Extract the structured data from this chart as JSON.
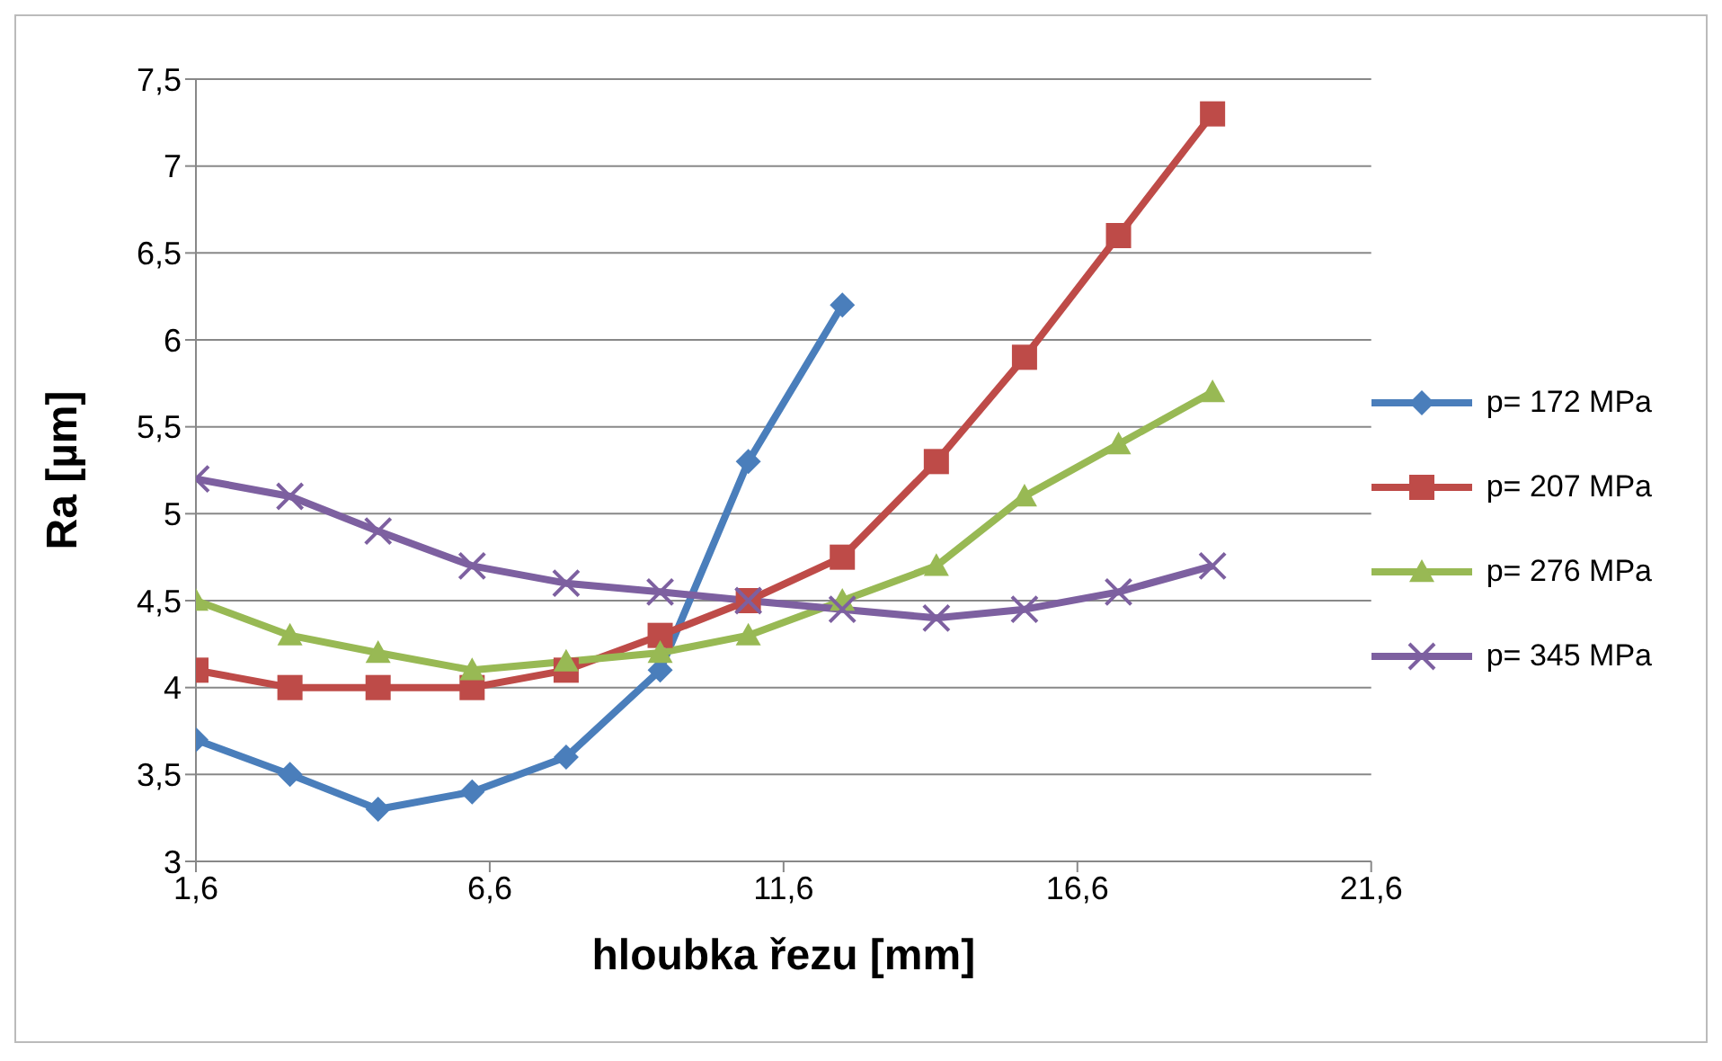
{
  "chart_data": {
    "type": "line",
    "xlabel": "hloubka řezu [mm]",
    "ylabel": "Ra [µm]",
    "xlim": [
      1.6,
      21.6
    ],
    "xticks": [
      {
        "value": 1.6,
        "label": "1,6"
      },
      {
        "value": 6.6,
        "label": "6,6"
      },
      {
        "value": 11.6,
        "label": "11,6"
      },
      {
        "value": 16.6,
        "label": "16,6"
      },
      {
        "value": 21.6,
        "label": "21,6"
      }
    ],
    "ylim": [
      3,
      7.5
    ],
    "yticks": [
      3,
      {
        "value": 3.5,
        "label": "3,5"
      },
      4,
      {
        "value": 4.5,
        "label": "4,5"
      },
      5,
      {
        "value": 5.5,
        "label": "5,5"
      },
      6,
      {
        "value": 6.5,
        "label": "6,5"
      },
      7,
      {
        "value": 7.5,
        "label": "7,5"
      }
    ],
    "grid": "y",
    "legend": "right",
    "line_style": "solid",
    "x": [
      1.6,
      3.2,
      4.7,
      6.3,
      7.9,
      9.5,
      11.0,
      12.6,
      14.2,
      15.7,
      17.3,
      18.9
    ],
    "series": [
      {
        "name": "p= 172 MPa",
        "color": "#4a7ebb",
        "marker": "diamond",
        "values": [
          3.7,
          3.5,
          3.3,
          3.4,
          3.6,
          4.1,
          5.3,
          6.2,
          null,
          null,
          null,
          null
        ]
      },
      {
        "name": "p= 207 MPa",
        "color": "#be4b48",
        "marker": "square",
        "values": [
          4.1,
          4.0,
          4.0,
          4.0,
          4.1,
          4.3,
          4.5,
          4.75,
          5.3,
          5.9,
          6.6,
          7.3
        ]
      },
      {
        "name": "p= 276 MPa",
        "color": "#98b954",
        "marker": "triangle",
        "values": [
          4.5,
          4.3,
          4.2,
          4.1,
          4.15,
          4.2,
          4.3,
          4.5,
          4.7,
          5.1,
          5.4,
          5.7
        ]
      },
      {
        "name": "p= 345 MPa",
        "color": "#7d60a0",
        "marker": "cross",
        "values": [
          5.2,
          5.1,
          4.9,
          4.7,
          4.6,
          4.55,
          4.5,
          4.45,
          4.4,
          4.45,
          4.55,
          4.7
        ]
      }
    ]
  }
}
